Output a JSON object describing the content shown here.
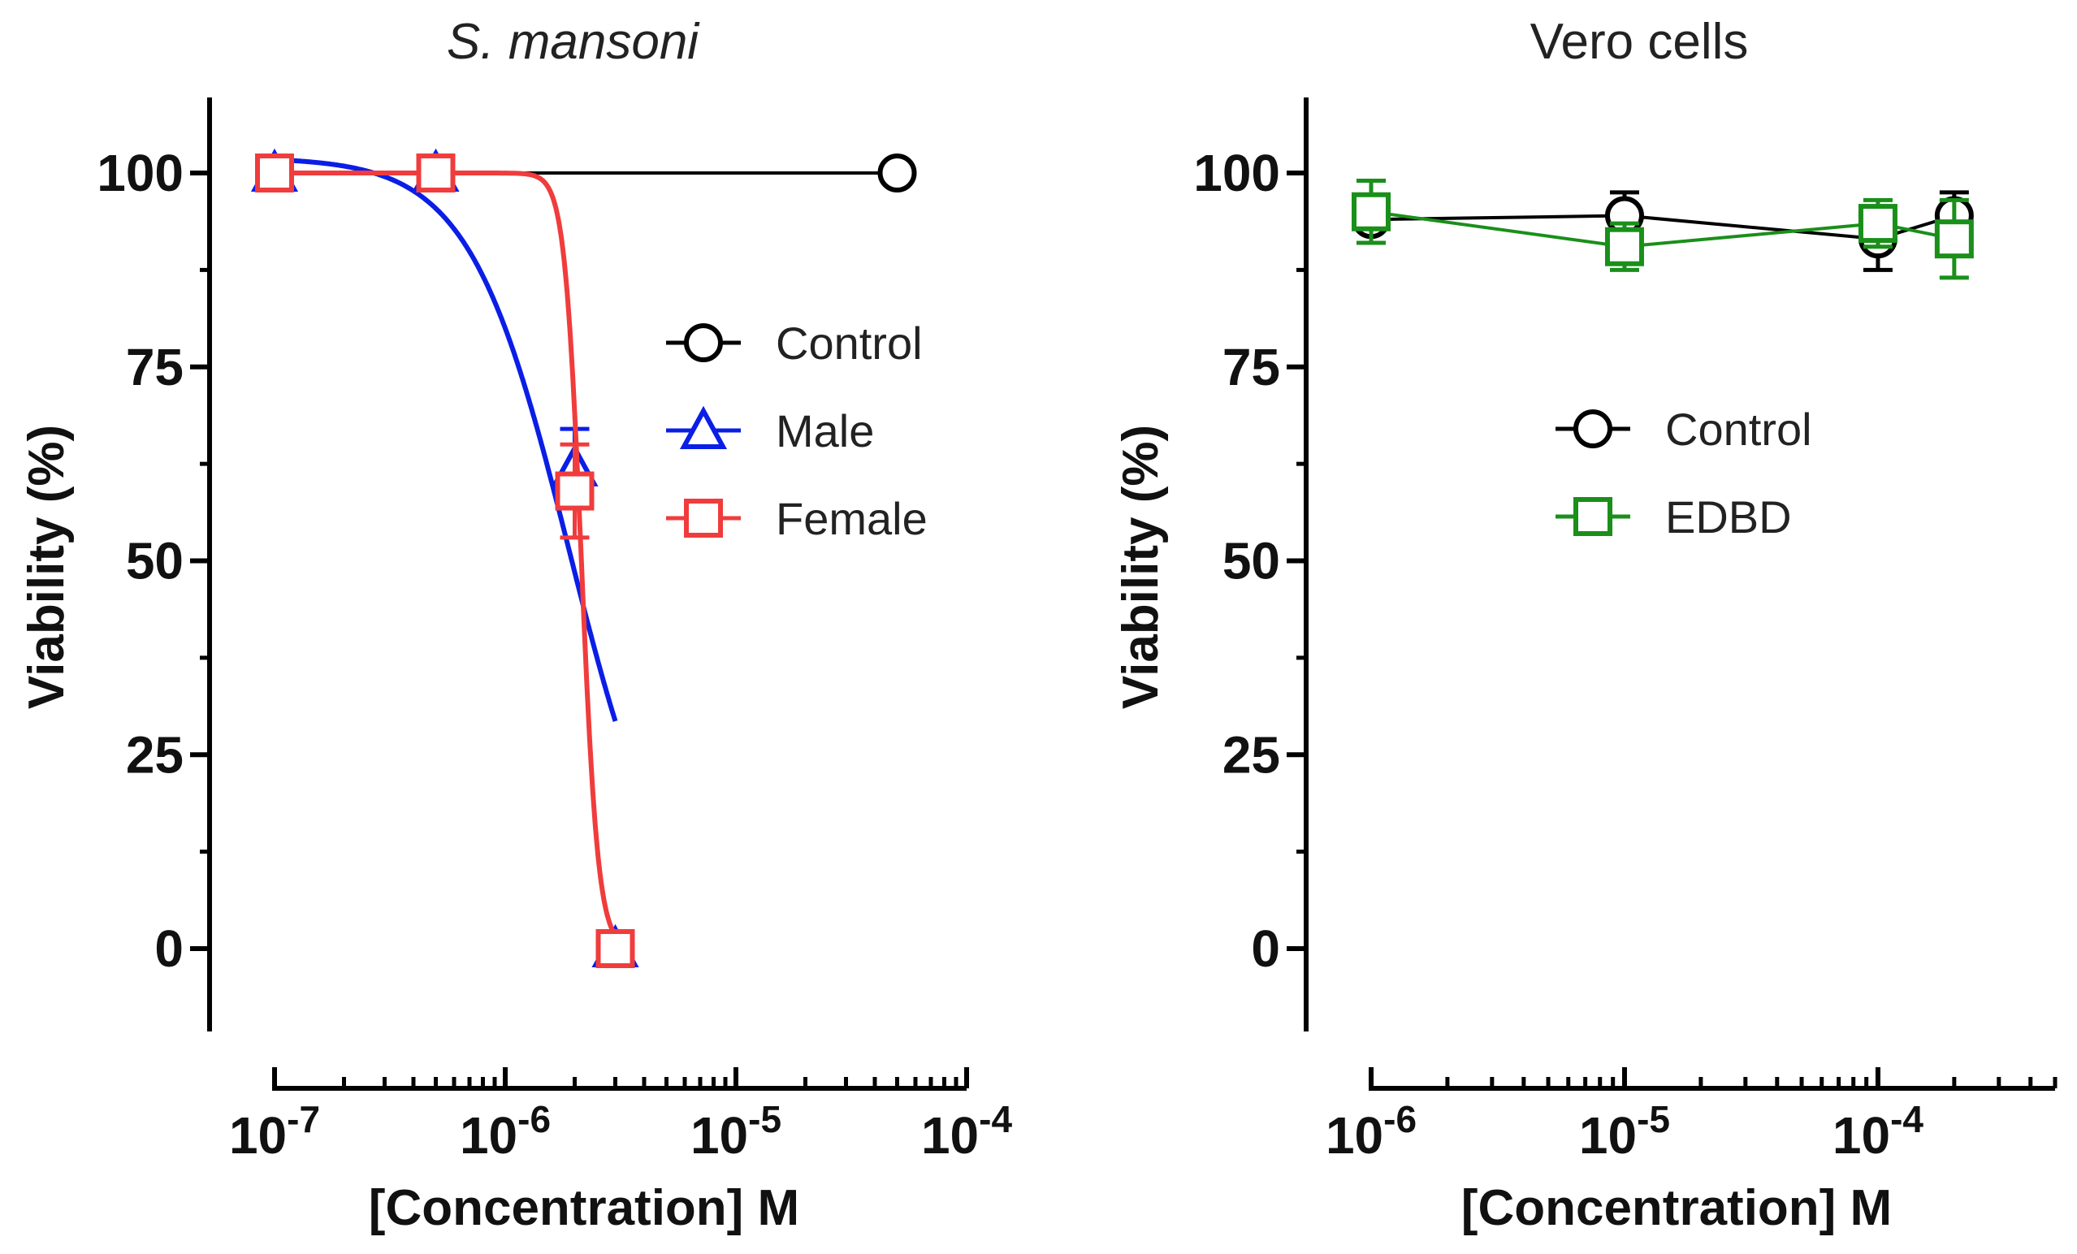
{
  "chart_data": [
    {
      "type": "scatter",
      "title": "S. mansoni",
      "title_style": "italic",
      "xlabel": "[Concentration] M",
      "ylabel": "Viability (%)",
      "xscale": "log",
      "xlim": [
        1e-07,
        0.0001
      ],
      "ylim": [
        -10,
        110
      ],
      "x_tick_labels": [
        {
          "value": 1e-07,
          "base": "10",
          "exp": "-7"
        },
        {
          "value": 1e-06,
          "base": "10",
          "exp": "-6"
        },
        {
          "value": 1e-05,
          "base": "10",
          "exp": "-5"
        },
        {
          "value": 0.0001,
          "base": "10",
          "exp": "-4"
        }
      ],
      "y_ticks": [
        0,
        25,
        50,
        75,
        100
      ],
      "legend_position": "middle-right",
      "series": [
        {
          "name": "Control",
          "color": "#000000",
          "marker": "circle",
          "fit": "line",
          "x": [
            1e-07,
            5e-05
          ],
          "y": [
            100,
            100
          ],
          "err": [
            0,
            0
          ]
        },
        {
          "name": "Male",
          "color": "#0a1ee6",
          "marker": "triangle",
          "fit": "sigmoid",
          "x": [
            1e-07,
            5e-07,
            2e-06,
            3e-06
          ],
          "y": [
            100,
            100,
            62,
            0
          ],
          "err": [
            0,
            0,
            5,
            0
          ],
          "fit_params": {
            "top": 102,
            "bottom": 0,
            "log_ic50": -5.72,
            "hill": 2.0
          }
        },
        {
          "name": "Female",
          "color": "#f03c3c",
          "marker": "square",
          "fit": "sigmoid",
          "x": [
            1e-07,
            5e-07,
            2e-06,
            3e-06
          ],
          "y": [
            100,
            100,
            59,
            0
          ],
          "err": [
            0,
            0,
            6,
            0
          ],
          "fit_params": {
            "top": 100,
            "bottom": 0,
            "log_ic50": -5.67,
            "hill": 12
          }
        }
      ]
    },
    {
      "type": "line",
      "title": "Vero cells",
      "title_style": "normal",
      "xlabel": "[Concentration] M",
      "ylabel": "Viability (%)",
      "xscale": "log",
      "xlim": [
        1e-06,
        0.0005
      ],
      "ylim": [
        -10,
        110
      ],
      "x_tick_labels": [
        {
          "value": 1e-06,
          "base": "10",
          "exp": "-6"
        },
        {
          "value": 1e-05,
          "base": "10",
          "exp": "-5"
        },
        {
          "value": 0.0001,
          "base": "10",
          "exp": "-4"
        }
      ],
      "y_ticks": [
        0,
        25,
        50,
        75,
        100
      ],
      "legend_position": "top-center",
      "series": [
        {
          "name": "Control",
          "color": "#000000",
          "marker": "circle",
          "x": [
            1e-06,
            1e-05,
            0.0001,
            0.0002
          ],
          "y": [
            94,
            94.5,
            91.5,
            94.5
          ],
          "err": [
            3,
            3,
            4,
            3
          ]
        },
        {
          "name": "EDBD",
          "color": "#1a8f1a",
          "marker": "square",
          "x": [
            1e-06,
            1e-05,
            0.0001,
            0.0002
          ],
          "y": [
            95,
            90.5,
            93.5,
            91.5
          ],
          "err": [
            4,
            3,
            3,
            5
          ]
        }
      ]
    }
  ]
}
